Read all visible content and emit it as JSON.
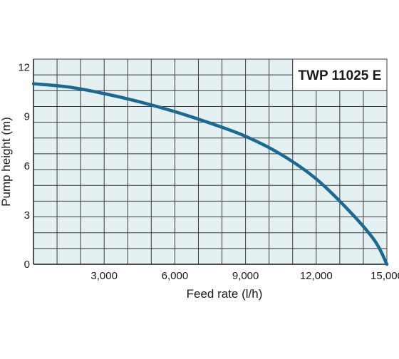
{
  "chart_data": {
    "type": "line",
    "title": "TWP 11025 E",
    "xlabel": "Feed rate (l/h)",
    "ylabel": "Pump height (m)",
    "xlim": [
      0,
      15000
    ],
    "ylim": [
      0,
      12.5
    ],
    "x_ticks": [
      3000,
      6000,
      9000,
      12000,
      15000
    ],
    "x_tick_labels": [
      "3,000",
      "6,000",
      "9,000",
      "12,000",
      "15,000"
    ],
    "y_ticks": [
      0,
      3,
      6,
      9,
      12
    ],
    "y_tick_labels": [
      "0",
      "3",
      "6",
      "9",
      "12"
    ],
    "grid": true,
    "colors": {
      "line": "#1a6a93",
      "grid_fill": "#e4f0f2",
      "grid_line": "#3a3a3a",
      "title_box": "#ffffff"
    },
    "series": [
      {
        "x": [
          0,
          1500,
          3000,
          4500,
          6000,
          7500,
          9000,
          10500,
          12000,
          13500,
          14500,
          15000
        ],
        "y": [
          11.0,
          10.8,
          10.4,
          9.9,
          9.3,
          8.6,
          7.8,
          6.7,
          5.2,
          3.1,
          1.4,
          0.0
        ]
      }
    ]
  }
}
